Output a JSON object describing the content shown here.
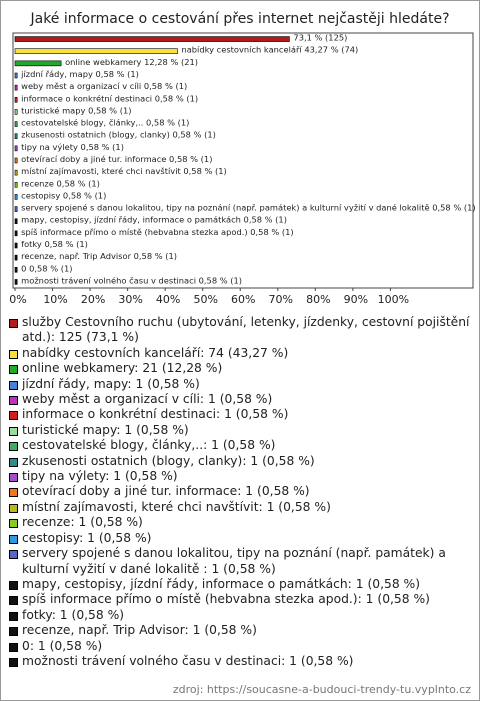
{
  "chart_data": {
    "type": "bar",
    "orientation": "horizontal",
    "title": "Jaké informace o cestování přes internet nejčastěji hledáte?",
    "categories": [
      "služby Cestovního ruchu (ubytování, letenky, jízdenky, cestovní pojištění atd.): 125 (73,1 %)",
      "nabídky cestovních kanceláří: 74 (43,27 %)",
      "online webkamery: 21 (12,28 %)",
      "jízdní řády, mapy: 1 (0,58 %)",
      "weby měst a organizací v cíli: 1 (0,58 %)",
      "informace o konkrétní destinaci: 1 (0,58 %)",
      "turistické mapy: 1 (0,58 %)",
      "cestovatelské blogy, články,..: 1 (0,58 %)",
      "zkusenosti ostatnich (blogy, clanky): 1 (0,58 %)",
      "tipy na výlety: 1 (0,58 %)",
      "otevírací doby a jiné tur. informace: 1 (0,58 %)",
      "místní zajímavosti, které chci navštívit: 1 (0,58 %)",
      "recenze: 1 (0,58 %)",
      "cestopisy: 1 (0,58 %)",
      "servery spojené s danou lokalitou, tipy na poznání (např. památek) a kulturní vyžití v dané lokalitě : 1 (0,58 %)",
      "mapy, cestopisy, jízdní řády, informace o památkách: 1 (0,58 %)",
      "spíš informace přímo o místě (hebvabna stezka apod.): 1 (0,58 %)",
      "fotky: 1 (0,58 %)",
      "recenze, např. Trip Advisor: 1 (0,58 %)",
      "0: 1 (0,58 %)",
      "možnosti trávení volného času v destinaci: 1 (0,58 %)"
    ],
    "values": [
      73.1,
      43.27,
      12.28,
      0.58,
      0.58,
      0.58,
      0.58,
      0.58,
      0.58,
      0.58,
      0.58,
      0.58,
      0.58,
      0.58,
      0.58,
      0.58,
      0.58,
      0.58,
      0.58,
      0.58,
      0.58
    ],
    "value_labels": [
      "73,1 % (125)",
      "nabídky cestovních kanceláří 43,27 % (74)",
      "online webkamery 12,28 % (21)",
      "jízdní řády, mapy 0,58 % (1)",
      "weby měst a organizací v cíli 0,58 % (1)",
      "informace o konkrétní destinaci 0,58 % (1)",
      "turistické mapy 0,58 % (1)",
      "cestovatelské blogy, články,.. 0,58 % (1)",
      "zkusenosti ostatnich (blogy, clanky) 0,58 % (1)",
      "tipy na výlety 0,58 % (1)",
      "otevírací doby a jiné tur. informace 0,58 % (1)",
      "místní zajímavosti, které chci navštívit 0,58 % (1)",
      "recenze 0,58 % (1)",
      "cestopisy 0,58 % (1)",
      "servery spojené s danou lokalitou, tipy na poznání (např. památek) a kulturní vyžití v dané lokalitě  0,58 % (1)",
      "mapy, cestopisy, jízdní řády, informace o památkách 0,58 % (1)",
      "spíš informace přímo o místě (hebvabna stezka apod.) 0,58 % (1)",
      "fotky 0,58 % (1)",
      "recenze, např. Trip Advisor 0,58 % (1)",
      "0 0,58 % (1)",
      "možnosti trávení volného času v destinaci 0,58 % (1)"
    ],
    "colors": [
      "#b01c1c",
      "#f8e23a",
      "#22a82a",
      "#4a7fd8",
      "#c030c0",
      "#d02020",
      "#9ada9a",
      "#44aa66",
      "#2f8c8c",
      "#a050c8",
      "#ee7722",
      "#b8b822",
      "#88cc22",
      "#3399dd",
      "#5566cc",
      "#111111",
      "#111111",
      "#111111",
      "#111111",
      "#111111",
      "#111111"
    ],
    "xlim": [
      0,
      122
    ],
    "xticks": [
      {
        "value": 0,
        "label": "0%"
      },
      {
        "value": 10,
        "label": "10%"
      },
      {
        "value": 20,
        "label": "20%"
      },
      {
        "value": 30,
        "label": "30%"
      },
      {
        "value": 40,
        "label": "40%"
      },
      {
        "value": 50,
        "label": "50%"
      },
      {
        "value": 60,
        "label": "60%"
      },
      {
        "value": 70,
        "label": "70%"
      },
      {
        "value": 80,
        "label": "80%"
      },
      {
        "value": 90,
        "label": "90%"
      },
      {
        "value": 100,
        "label": "100%"
      }
    ],
    "source": "zdroj: https://soucasne-a-budouci-trendy-tu.vyplnto.cz"
  }
}
